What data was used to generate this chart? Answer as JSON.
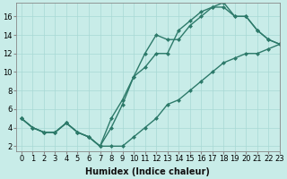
{
  "line1_x": [
    0,
    1,
    2,
    3,
    4,
    5,
    6,
    7,
    8,
    9,
    10,
    11,
    12,
    13,
    14,
    15,
    16,
    17,
    18,
    19,
    20,
    21,
    22,
    23
  ],
  "line1_y": [
    5,
    4,
    3.5,
    3.5,
    4.5,
    3.5,
    3,
    2,
    2,
    2,
    3,
    4,
    5,
    6.5,
    7,
    8,
    9,
    10,
    11,
    11.5,
    12,
    12,
    12.5,
    13
  ],
  "line2_x": [
    0,
    1,
    2,
    3,
    4,
    5,
    6,
    7,
    8,
    9,
    10,
    11,
    12,
    13,
    14,
    15,
    16,
    17,
    18,
    19,
    20,
    21,
    22,
    23
  ],
  "line2_y": [
    5,
    4,
    3.5,
    3.5,
    4.5,
    3.5,
    3,
    2,
    4,
    6.5,
    9.5,
    12,
    14,
    13.5,
    13.5,
    15,
    16,
    17,
    17.5,
    16,
    16,
    14.5,
    13.5,
    13
  ],
  "line3_x": [
    0,
    1,
    2,
    3,
    4,
    5,
    6,
    7,
    8,
    9,
    10,
    11,
    12,
    13,
    14,
    15,
    16,
    17,
    18,
    19,
    20,
    21,
    22,
    23
  ],
  "line3_y": [
    5,
    4,
    3.5,
    3.5,
    4.5,
    3.5,
    3,
    2,
    5,
    7,
    9.5,
    10.5,
    12,
    12,
    14.5,
    15.5,
    16.5,
    17,
    17,
    16,
    16,
    14.5,
    13.5,
    13
  ],
  "line_color": "#2d7a6a",
  "bg_color": "#c8ece8",
  "grid_color": "#a8d8d4",
  "xlabel": "Humidex (Indice chaleur)",
  "xlim": [
    -0.5,
    23
  ],
  "ylim": [
    1.5,
    17.5
  ],
  "yticks": [
    2,
    4,
    6,
    8,
    10,
    12,
    14,
    16
  ],
  "xticks": [
    0,
    1,
    2,
    3,
    4,
    5,
    6,
    7,
    8,
    9,
    10,
    11,
    12,
    13,
    14,
    15,
    16,
    17,
    18,
    19,
    20,
    21,
    22,
    23
  ],
  "marker": "D",
  "marker_size": 2.5,
  "line_width": 1.0,
  "xlabel_fontsize": 7,
  "tick_fontsize": 6
}
